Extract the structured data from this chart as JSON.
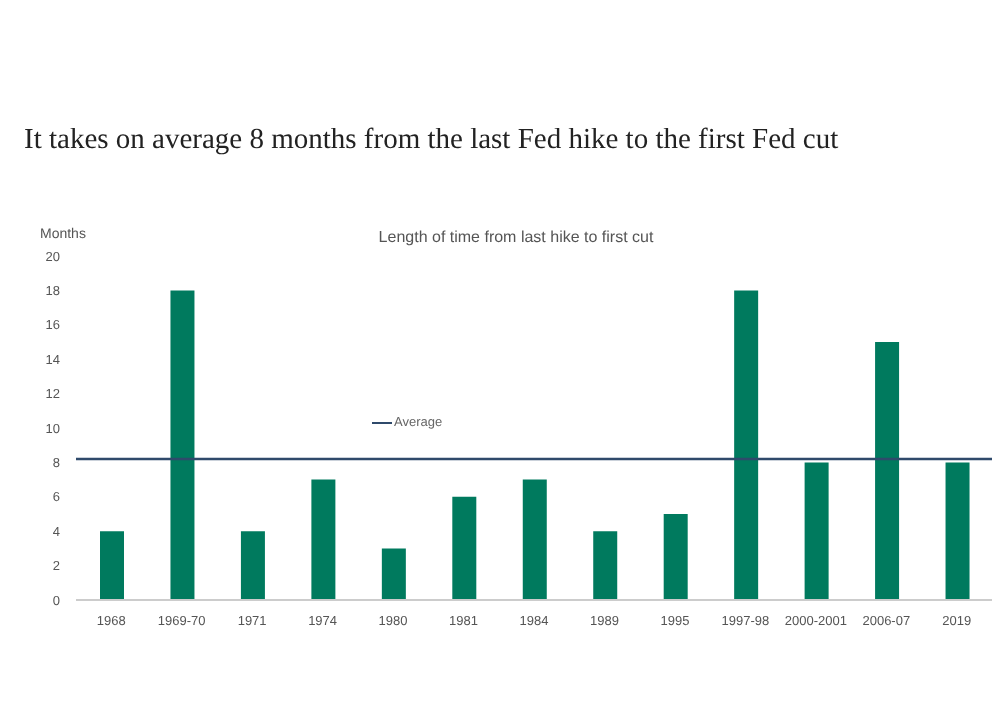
{
  "chart_data": {
    "type": "bar",
    "title": "It takes on average 8 months from the last Fed hike to the first Fed cut",
    "subtitle": "Length of time from last hike to first cut",
    "ylabel": "Months",
    "categories": [
      "1968",
      "1969-70",
      "1971",
      "1974",
      "1980",
      "1981",
      "1984",
      "1989",
      "1995",
      "1997-98",
      "2000-2001",
      "2006-07",
      "2019"
    ],
    "values": [
      4,
      18,
      4,
      7,
      3,
      6,
      7,
      4,
      5,
      18,
      8,
      15,
      8
    ],
    "color": "#007a5e",
    "ylim": [
      0,
      20
    ],
    "yticks": [
      0,
      2,
      4,
      6,
      8,
      10,
      12,
      14,
      16,
      18,
      20
    ],
    "grid": false,
    "ref_lines": [
      {
        "axis": "y",
        "value": 8.2,
        "label": "Average",
        "color": "#2f4a6b"
      }
    ]
  }
}
